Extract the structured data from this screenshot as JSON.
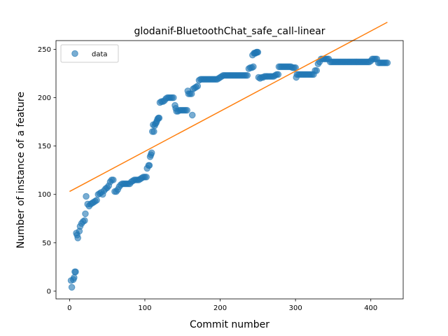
{
  "chart_data": {
    "type": "scatter",
    "title": "glodanif-BluetoothChat_safe_call-linear",
    "xlabel": "Commit number",
    "ylabel": "Number of instance of a feature",
    "xlim": [
      -18,
      443
    ],
    "ylim": [
      -8,
      259
    ],
    "x_ticks": [
      0,
      100,
      200,
      300,
      400
    ],
    "y_ticks": [
      0,
      50,
      100,
      150,
      200,
      250
    ],
    "x_tick_labels": [
      "0",
      "100",
      "200",
      "300",
      "400"
    ],
    "y_tick_labels": [
      "0",
      "50",
      "100",
      "150",
      "200",
      "250"
    ],
    "grid": false,
    "legend": {
      "position": "top-left",
      "entries": [
        "data"
      ]
    },
    "colors": {
      "scatter": "#1f77b4",
      "fit": "#ff7f0e"
    },
    "series": [
      {
        "name": "data",
        "kind": "scatter",
        "points": [
          [
            2,
            11
          ],
          [
            3,
            4
          ],
          [
            5,
            12
          ],
          [
            6,
            14
          ],
          [
            7,
            20
          ],
          [
            8,
            20
          ],
          [
            9,
            60
          ],
          [
            10,
            58
          ],
          [
            11,
            55
          ],
          [
            13,
            62
          ],
          [
            14,
            67
          ],
          [
            16,
            70
          ],
          [
            18,
            72
          ],
          [
            20,
            73
          ],
          [
            21,
            80
          ],
          [
            22,
            98
          ],
          [
            24,
            90
          ],
          [
            26,
            88
          ],
          [
            28,
            90
          ],
          [
            30,
            91
          ],
          [
            32,
            92
          ],
          [
            34,
            93
          ],
          [
            36,
            94
          ],
          [
            38,
            100
          ],
          [
            40,
            101
          ],
          [
            42,
            102
          ],
          [
            44,
            100
          ],
          [
            46,
            104
          ],
          [
            48,
            106
          ],
          [
            50,
            107
          ],
          [
            52,
            109
          ],
          [
            54,
            113
          ],
          [
            56,
            115
          ],
          [
            58,
            115
          ],
          [
            60,
            103
          ],
          [
            62,
            103
          ],
          [
            64,
            105
          ],
          [
            66,
            108
          ],
          [
            68,
            110
          ],
          [
            70,
            111
          ],
          [
            72,
            111
          ],
          [
            74,
            111
          ],
          [
            76,
            111
          ],
          [
            78,
            111
          ],
          [
            80,
            111
          ],
          [
            82,
            113
          ],
          [
            84,
            114
          ],
          [
            86,
            115
          ],
          [
            88,
            115
          ],
          [
            90,
            115
          ],
          [
            92,
            115
          ],
          [
            94,
            116
          ],
          [
            96,
            117
          ],
          [
            98,
            118
          ],
          [
            100,
            118
          ],
          [
            102,
            118
          ],
          [
            103,
            127
          ],
          [
            105,
            130
          ],
          [
            106,
            130
          ],
          [
            107,
            139
          ],
          [
            108,
            141
          ],
          [
            109,
            143
          ],
          [
            110,
            165
          ],
          [
            111,
            172
          ],
          [
            112,
            165
          ],
          [
            113,
            171
          ],
          [
            114,
            173
          ],
          [
            115,
            174
          ],
          [
            116,
            176
          ],
          [
            117,
            178
          ],
          [
            118,
            179
          ],
          [
            119,
            179
          ],
          [
            120,
            195
          ],
          [
            122,
            196
          ],
          [
            124,
            196
          ],
          [
            126,
            197
          ],
          [
            128,
            199
          ],
          [
            130,
            200
          ],
          [
            132,
            200
          ],
          [
            134,
            200
          ],
          [
            136,
            200
          ],
          [
            138,
            200
          ],
          [
            140,
            192
          ],
          [
            141,
            189
          ],
          [
            142,
            186
          ],
          [
            144,
            186
          ],
          [
            146,
            187
          ],
          [
            148,
            187
          ],
          [
            150,
            187
          ],
          [
            152,
            187
          ],
          [
            154,
            187
          ],
          [
            156,
            187
          ],
          [
            157,
            207
          ],
          [
            158,
            204
          ],
          [
            160,
            204
          ],
          [
            162,
            204
          ],
          [
            163,
            182
          ],
          [
            164,
            209
          ],
          [
            166,
            210
          ],
          [
            168,
            211
          ],
          [
            170,
            212
          ],
          [
            172,
            218
          ],
          [
            174,
            219
          ],
          [
            176,
            219
          ],
          [
            178,
            219
          ],
          [
            180,
            219
          ],
          [
            182,
            219
          ],
          [
            184,
            219
          ],
          [
            186,
            219
          ],
          [
            188,
            219
          ],
          [
            190,
            219
          ],
          [
            192,
            219
          ],
          [
            194,
            219
          ],
          [
            196,
            219
          ],
          [
            198,
            220
          ],
          [
            200,
            221
          ],
          [
            202,
            222
          ],
          [
            204,
            223
          ],
          [
            206,
            223
          ],
          [
            208,
            223
          ],
          [
            210,
            223
          ],
          [
            212,
            223
          ],
          [
            214,
            223
          ],
          [
            216,
            223
          ],
          [
            218,
            223
          ],
          [
            220,
            223
          ],
          [
            222,
            223
          ],
          [
            224,
            223
          ],
          [
            226,
            223
          ],
          [
            228,
            223
          ],
          [
            230,
            223
          ],
          [
            232,
            223
          ],
          [
            234,
            223
          ],
          [
            236,
            223
          ],
          [
            238,
            230
          ],
          [
            240,
            231
          ],
          [
            242,
            231
          ],
          [
            243,
            244
          ],
          [
            244,
            232
          ],
          [
            245,
            246
          ],
          [
            246,
            246
          ],
          [
            247,
            246
          ],
          [
            248,
            247
          ],
          [
            249,
            247
          ],
          [
            250,
            247
          ],
          [
            251,
            221
          ],
          [
            253,
            220
          ],
          [
            255,
            221
          ],
          [
            257,
            221
          ],
          [
            259,
            222
          ],
          [
            261,
            222
          ],
          [
            263,
            222
          ],
          [
            265,
            222
          ],
          [
            267,
            222
          ],
          [
            269,
            222
          ],
          [
            271,
            222
          ],
          [
            273,
            223
          ],
          [
            275,
            224
          ],
          [
            277,
            224
          ],
          [
            278,
            232
          ],
          [
            280,
            232
          ],
          [
            282,
            232
          ],
          [
            284,
            232
          ],
          [
            286,
            232
          ],
          [
            288,
            232
          ],
          [
            290,
            232
          ],
          [
            292,
            232
          ],
          [
            294,
            232
          ],
          [
            296,
            231
          ],
          [
            298,
            231
          ],
          [
            300,
            231
          ],
          [
            301,
            221
          ],
          [
            302,
            224
          ],
          [
            304,
            224
          ],
          [
            306,
            224
          ],
          [
            308,
            224
          ],
          [
            310,
            224
          ],
          [
            312,
            224
          ],
          [
            314,
            224
          ],
          [
            316,
            224
          ],
          [
            318,
            224
          ],
          [
            320,
            224
          ],
          [
            322,
            224
          ],
          [
            324,
            224
          ],
          [
            326,
            228
          ],
          [
            328,
            228
          ],
          [
            330,
            235
          ],
          [
            332,
            237
          ],
          [
            334,
            240
          ],
          [
            336,
            240
          ],
          [
            338,
            240
          ],
          [
            340,
            240
          ],
          [
            342,
            240
          ],
          [
            344,
            240
          ],
          [
            346,
            237
          ],
          [
            348,
            237
          ],
          [
            350,
            237
          ],
          [
            352,
            237
          ],
          [
            354,
            237
          ],
          [
            356,
            237
          ],
          [
            358,
            237
          ],
          [
            360,
            237
          ],
          [
            362,
            237
          ],
          [
            364,
            237
          ],
          [
            366,
            237
          ],
          [
            368,
            237
          ],
          [
            370,
            237
          ],
          [
            372,
            237
          ],
          [
            374,
            237
          ],
          [
            376,
            237
          ],
          [
            378,
            237
          ],
          [
            380,
            237
          ],
          [
            382,
            237
          ],
          [
            384,
            237
          ],
          [
            386,
            237
          ],
          [
            388,
            237
          ],
          [
            390,
            237
          ],
          [
            392,
            237
          ],
          [
            394,
            237
          ],
          [
            396,
            237
          ],
          [
            398,
            237
          ],
          [
            400,
            238
          ],
          [
            402,
            240
          ],
          [
            404,
            240
          ],
          [
            406,
            240
          ],
          [
            408,
            240
          ],
          [
            410,
            236
          ],
          [
            412,
            236
          ],
          [
            414,
            236
          ],
          [
            416,
            236
          ],
          [
            418,
            236
          ],
          [
            420,
            236
          ],
          [
            422,
            236
          ]
        ]
      },
      {
        "name": "linear fit",
        "kind": "line",
        "points": [
          [
            0,
            103
          ],
          [
            422,
            278
          ]
        ]
      }
    ]
  }
}
